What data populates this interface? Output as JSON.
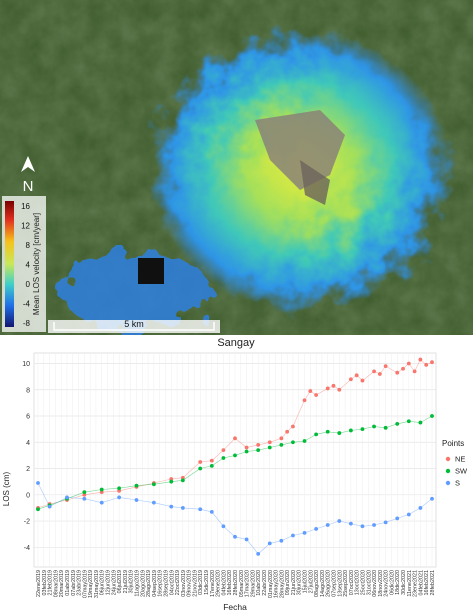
{
  "map": {
    "north_label": "N",
    "colorbar_title": "Mean LOS velocity [cm/year]",
    "colorbar_ticks": [
      "16",
      "12",
      "8",
      "4",
      "0",
      "-4",
      "-8"
    ],
    "scale_label": "5 km",
    "title": "Sangay",
    "colors": {
      "terrain": "#3f5a2c",
      "deformation_core": "#d9e84a",
      "deformation_edge": "#1f7fe0"
    }
  },
  "chart_data": {
    "type": "scatter",
    "title": "",
    "xlabel": "Fecha",
    "ylabel": "LOS (cm)",
    "ylim": [
      -5.5,
      10.8
    ],
    "yticks": [
      -4,
      -2,
      0,
      2,
      4,
      6,
      8,
      10
    ],
    "grid": true,
    "legend": {
      "title": "Points",
      "placement": "right"
    },
    "x_tick_labels": [
      "22ene2019",
      "03feb2019",
      "21feb2019",
      "08mar2019",
      "20mar2019",
      "01abr2019",
      "07abr2019",
      "23abr2019",
      "07may2019",
      "19may2019",
      "31may2019",
      "06jun2019",
      "12jun2019",
      "24jun2019",
      "06jul2019",
      "21jul2019",
      "30jul2019",
      "11ago2019",
      "20ago2019",
      "28ago2019",
      "04sep2019",
      "16sep2019",
      "28sep2019",
      "04oct2019",
      "22oct2019",
      "03nov2019",
      "09nov2019",
      "21nov2019",
      "03dic2019",
      "15dic2019",
      "17ene2020",
      "29ene2020",
      "04feb2020",
      "16feb2020",
      "28feb2020",
      "05mar2020",
      "17mar2020",
      "29mar2020",
      "10abr2020",
      "22abr2020",
      "01may2020",
      "16may2020",
      "28may2020",
      "09jun2020",
      "21jun2020",
      "30jun2020",
      "15jul2020",
      "27jul2020",
      "08ago2020",
      "14ago2020",
      "26ago2020",
      "07sep2020",
      "13sep2020",
      "25sep2020",
      "07oct2020",
      "13oct2020",
      "25oct2020",
      "31oct2020",
      "06nov2020",
      "18nov2020",
      "24nov2020",
      "06dic2020",
      "18dic2020",
      "30dic2020",
      "11ene2021",
      "23ene2021",
      "04feb2021",
      "16feb2021",
      "28feb2021"
    ],
    "series": [
      {
        "name": "NE",
        "color": "#f8766d",
        "x": [
          0,
          2,
          5,
          8,
          11,
          14,
          17,
          20,
          23,
          25,
          28,
          30,
          32,
          34,
          36,
          38,
          40,
          42,
          43,
          44,
          46,
          47,
          48,
          50,
          51,
          52,
          54,
          55,
          56,
          58,
          59,
          60,
          62,
          63,
          64,
          65,
          66,
          67,
          68
        ],
        "y": [
          -1.0,
          -0.7,
          -0.4,
          0.0,
          0.2,
          0.3,
          0.6,
          0.9,
          1.2,
          1.3,
          2.5,
          2.6,
          3.4,
          4.3,
          3.6,
          3.8,
          4.0,
          4.3,
          4.8,
          5.2,
          7.2,
          7.9,
          7.6,
          8.1,
          8.3,
          8.0,
          8.8,
          9.1,
          8.7,
          9.4,
          9.2,
          9.8,
          9.3,
          9.6,
          10.0,
          9.4,
          10.3,
          9.9,
          10.1
        ]
      },
      {
        "name": "SW",
        "color": "#00ba38",
        "x": [
          0,
          2,
          5,
          8,
          11,
          14,
          17,
          20,
          23,
          25,
          28,
          30,
          32,
          34,
          36,
          38,
          40,
          42,
          44,
          46,
          48,
          50,
          52,
          54,
          56,
          58,
          60,
          62,
          64,
          66,
          68
        ],
        "y": [
          -1.1,
          -0.8,
          -0.3,
          0.2,
          0.4,
          0.5,
          0.7,
          0.8,
          1.0,
          1.1,
          2.0,
          2.2,
          2.8,
          3.0,
          3.3,
          3.4,
          3.6,
          3.8,
          4.0,
          4.1,
          4.6,
          4.8,
          4.7,
          4.9,
          5.0,
          5.2,
          5.1,
          5.4,
          5.6,
          5.5,
          6.0
        ]
      },
      {
        "name": "S",
        "color": "#619cff",
        "x": [
          0,
          2,
          5,
          8,
          11,
          14,
          17,
          20,
          23,
          25,
          28,
          30,
          32,
          34,
          36,
          38,
          40,
          42,
          44,
          46,
          48,
          50,
          52,
          54,
          56,
          58,
          60,
          62,
          64,
          66,
          68
        ],
        "y": [
          0.9,
          -0.9,
          -0.2,
          -0.3,
          -0.6,
          -0.2,
          -0.4,
          -0.6,
          -0.9,
          -1.0,
          -1.1,
          -1.3,
          -2.4,
          -3.2,
          -3.4,
          -4.5,
          -3.7,
          -3.5,
          -3.1,
          -2.9,
          -2.6,
          -2.3,
          -2.0,
          -2.2,
          -2.4,
          -2.3,
          -2.1,
          -1.8,
          -1.5,
          -1.0,
          -0.3
        ]
      }
    ]
  }
}
